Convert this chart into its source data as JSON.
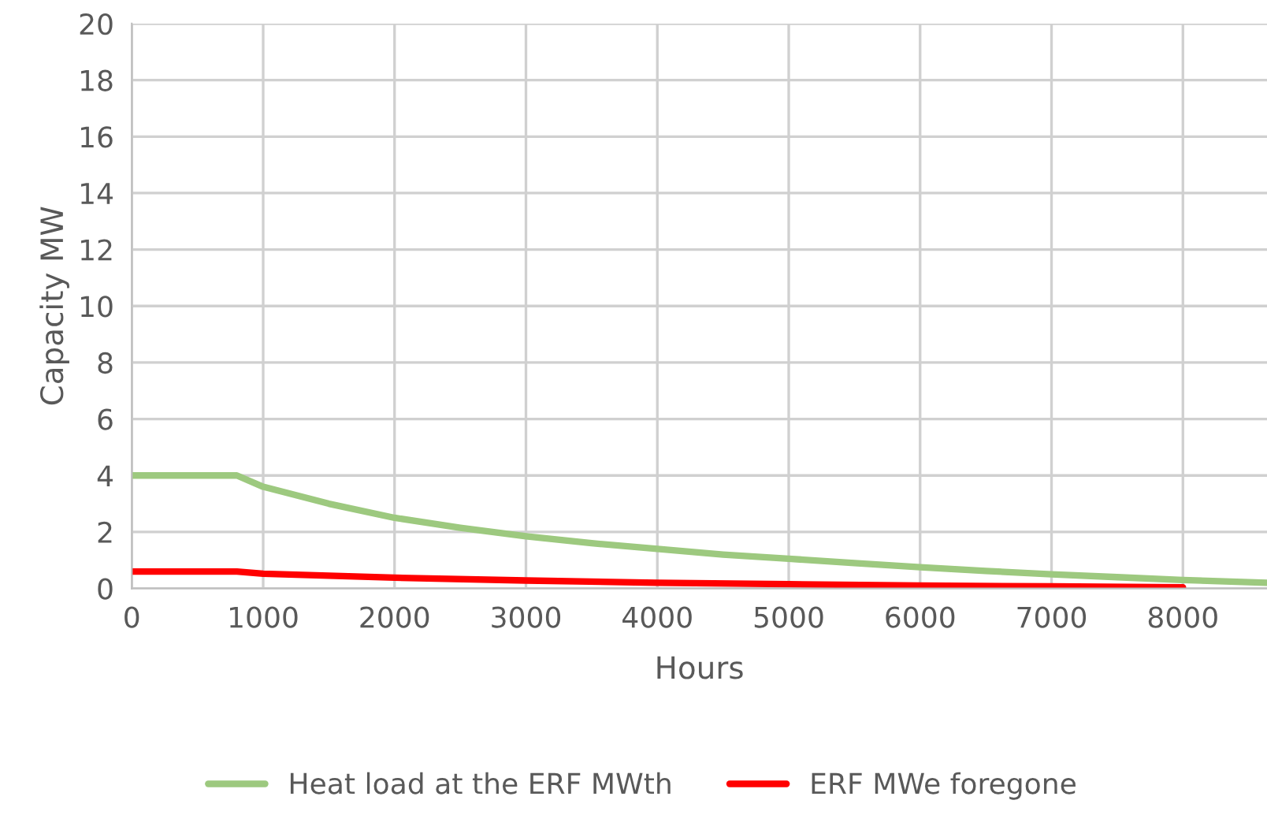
{
  "chart_data": {
    "type": "line",
    "xlabel": "Hours",
    "ylabel": "Capacity MW",
    "xlim": [
      0,
      8640
    ],
    "xticks": [
      0,
      1000,
      2000,
      3000,
      4000,
      5000,
      6000,
      7000,
      8000
    ],
    "ylim": [
      0,
      20
    ],
    "yticks": [
      0,
      2,
      4,
      6,
      8,
      10,
      12,
      14,
      16,
      18,
      20
    ],
    "grid": true,
    "legend": "bottom",
    "series": [
      {
        "name": "Heat load at the ERF MWth",
        "color": "#9dc97f",
        "x": [
          0,
          800,
          1000,
          1500,
          2000,
          2500,
          3000,
          3500,
          4000,
          4500,
          5000,
          5500,
          6000,
          6500,
          7000,
          7500,
          8000,
          8640
        ],
        "values": [
          4,
          4,
          3.6,
          3,
          2.5,
          2.15,
          1.85,
          1.6,
          1.4,
          1.2,
          1.05,
          0.9,
          0.75,
          0.62,
          0.5,
          0.4,
          0.3,
          0.2
        ]
      },
      {
        "name": "ERF MWe foregone",
        "color": "#ff0000",
        "x": [
          0,
          800,
          1000,
          2000,
          3000,
          4000,
          5000,
          6000,
          7000,
          8000
        ],
        "values": [
          0.6,
          0.6,
          0.52,
          0.38,
          0.28,
          0.2,
          0.15,
          0.1,
          0.07,
          0.04
        ]
      }
    ]
  }
}
